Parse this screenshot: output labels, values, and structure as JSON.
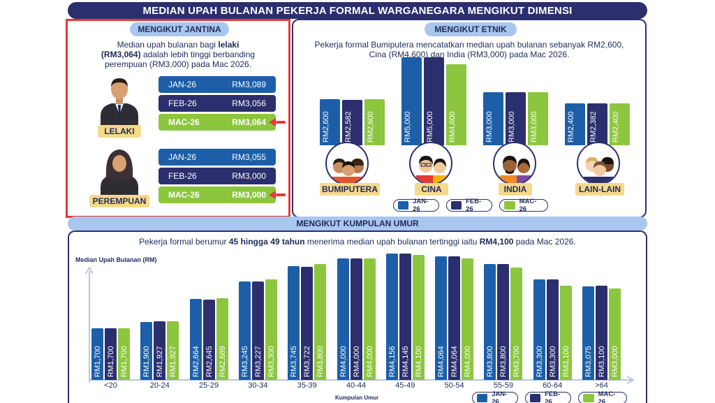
{
  "title": "MEDIAN UPAH BULANAN PEKERJA FORMAL WARGANEGARA MENGIKUT DIMENSI",
  "colors": {
    "jan": "#1c5fa8",
    "feb": "#2b2f6e",
    "mac": "#8cc63f",
    "accent": "#e53935",
    "navy": "#2b2f6e"
  },
  "gender": {
    "header": "MENGIKUT JANTINA",
    "desc_1": "Median upah bulanan bagi ",
    "desc_bold_1": "lelaki",
    "desc_bold_2": "(RM3,064)",
    "desc_2": " adalah lebih tinggi berbanding",
    "desc_3": "perempuan (RM3,000) pada Mac 2026.",
    "male": {
      "label": "LELAKI",
      "icon": "male-worker-icon",
      "rows": [
        {
          "month": "JAN-26",
          "value": "RM3,089"
        },
        {
          "month": "FEB-26",
          "value": "RM3,056"
        },
        {
          "month": "MAC-26",
          "value": "RM3,064"
        }
      ]
    },
    "female": {
      "label": "PEREMPUAN",
      "icon": "female-worker-icon",
      "rows": [
        {
          "month": "JAN-26",
          "value": "RM3,055"
        },
        {
          "month": "FEB-26",
          "value": "RM3,000"
        },
        {
          "month": "MAC-26",
          "value": "RM3,000"
        }
      ]
    }
  },
  "ethnic": {
    "header": "MENGIKUT ETNIK",
    "desc_1": "Pekerja formal Bumiputera mencatatkan median upah bulanan sebanyak RM2,600,",
    "desc_2": "Cina (RM4,600) dan India (RM3,000) pada Mac 2026.",
    "groups": [
      {
        "name": "BUMIPUTERA",
        "icon": "bumiputera-group-icon"
      },
      {
        "name": "CINA",
        "icon": "chinese-group-icon"
      },
      {
        "name": "INDIA",
        "icon": "indian-group-icon"
      },
      {
        "name": "LAIN-LAIN",
        "icon": "others-group-icon"
      }
    ],
    "legend": [
      "JAN-26",
      "FEB-26",
      "MAC-26"
    ]
  },
  "age": {
    "header": "MENGIKUT KUMPULAN UMUR",
    "desc_1": "Pekerja formal berumur ",
    "desc_bold_1": "45 hingga 49 tahun",
    "desc_2": " menerima median upah bulanan tertinggi iaitu ",
    "desc_bold_2": "RM4,100",
    "desc_3": " pada Mac 2026.",
    "legend": [
      "JAN-26",
      "FEB-26",
      "MAC-26"
    ]
  },
  "chart_data": [
    {
      "type": "bar",
      "title": "MENGIKUT ETNIK",
      "categories": [
        "BUMIPUTERA",
        "CINA",
        "INDIA",
        "LAIN-LAIN"
      ],
      "series": [
        {
          "name": "JAN-26",
          "values": [
            2600,
            5000,
            3000,
            2400
          ],
          "labels": [
            "RM2,600",
            "RM5,000",
            "RM3,000",
            "RM2,400"
          ]
        },
        {
          "name": "FEB-26",
          "values": [
            2582,
            5000,
            3000,
            2382
          ],
          "labels": [
            "RM2,582",
            "RM5,000",
            "RM3,000",
            "RM2,382"
          ]
        },
        {
          "name": "MAC-26",
          "values": [
            2600,
            4600,
            3000,
            2400
          ],
          "labels": [
            "RM2,600",
            "RM4,600",
            "RM3,000",
            "RM2,400"
          ]
        }
      ],
      "ylim": [
        0,
        5000
      ],
      "legend": "bottom"
    },
    {
      "type": "bar",
      "title": "MENGIKUT KUMPULAN UMUR",
      "xlabel": "Kumpulan Umur",
      "ylabel": "Median Upah Bulanan (RM)",
      "categories": [
        "<20",
        "20-24",
        "25-29",
        "30-34",
        "35-39",
        "40-44",
        "45-49",
        "50-54",
        "55-59",
        "60-64",
        ">64"
      ],
      "series": [
        {
          "name": "JAN-26",
          "values": [
            1700,
            1900,
            2664,
            3245,
            3745,
            4000,
            4156,
            4064,
            3800,
            3300,
            3075
          ],
          "labels": [
            "RM1,700",
            "RM1,900",
            "RM2,664",
            "RM3,245",
            "RM3,745",
            "RM4,000",
            "RM4,156",
            "RM4,064",
            "RM3,800",
            "RM3,300",
            "RM3,075"
          ]
        },
        {
          "name": "FEB-26",
          "values": [
            1700,
            1927,
            2645,
            3227,
            3722,
            4000,
            4145,
            4064,
            3800,
            3300,
            3100
          ],
          "labels": [
            "RM1,700",
            "RM1,927",
            "RM2,645",
            "RM3,227",
            "RM3,722",
            "RM4,000",
            "RM4,145",
            "RM4,064",
            "RM3,800",
            "RM3,300",
            "RM3,100"
          ]
        },
        {
          "name": "MAC-26",
          "values": [
            1700,
            1927,
            2689,
            3300,
            3800,
            4000,
            4100,
            4000,
            3700,
            3100,
            3000
          ],
          "labels": [
            "RM1,700",
            "RM1,927",
            "RM2,689",
            "RM3,300",
            "RM3,800",
            "RM4,000",
            "RM4,100",
            "RM4,000",
            "RM3,700",
            "RM3,100",
            "RM3,000"
          ]
        }
      ],
      "ylim": [
        0,
        4500
      ],
      "legend": "bottom-right"
    }
  ]
}
